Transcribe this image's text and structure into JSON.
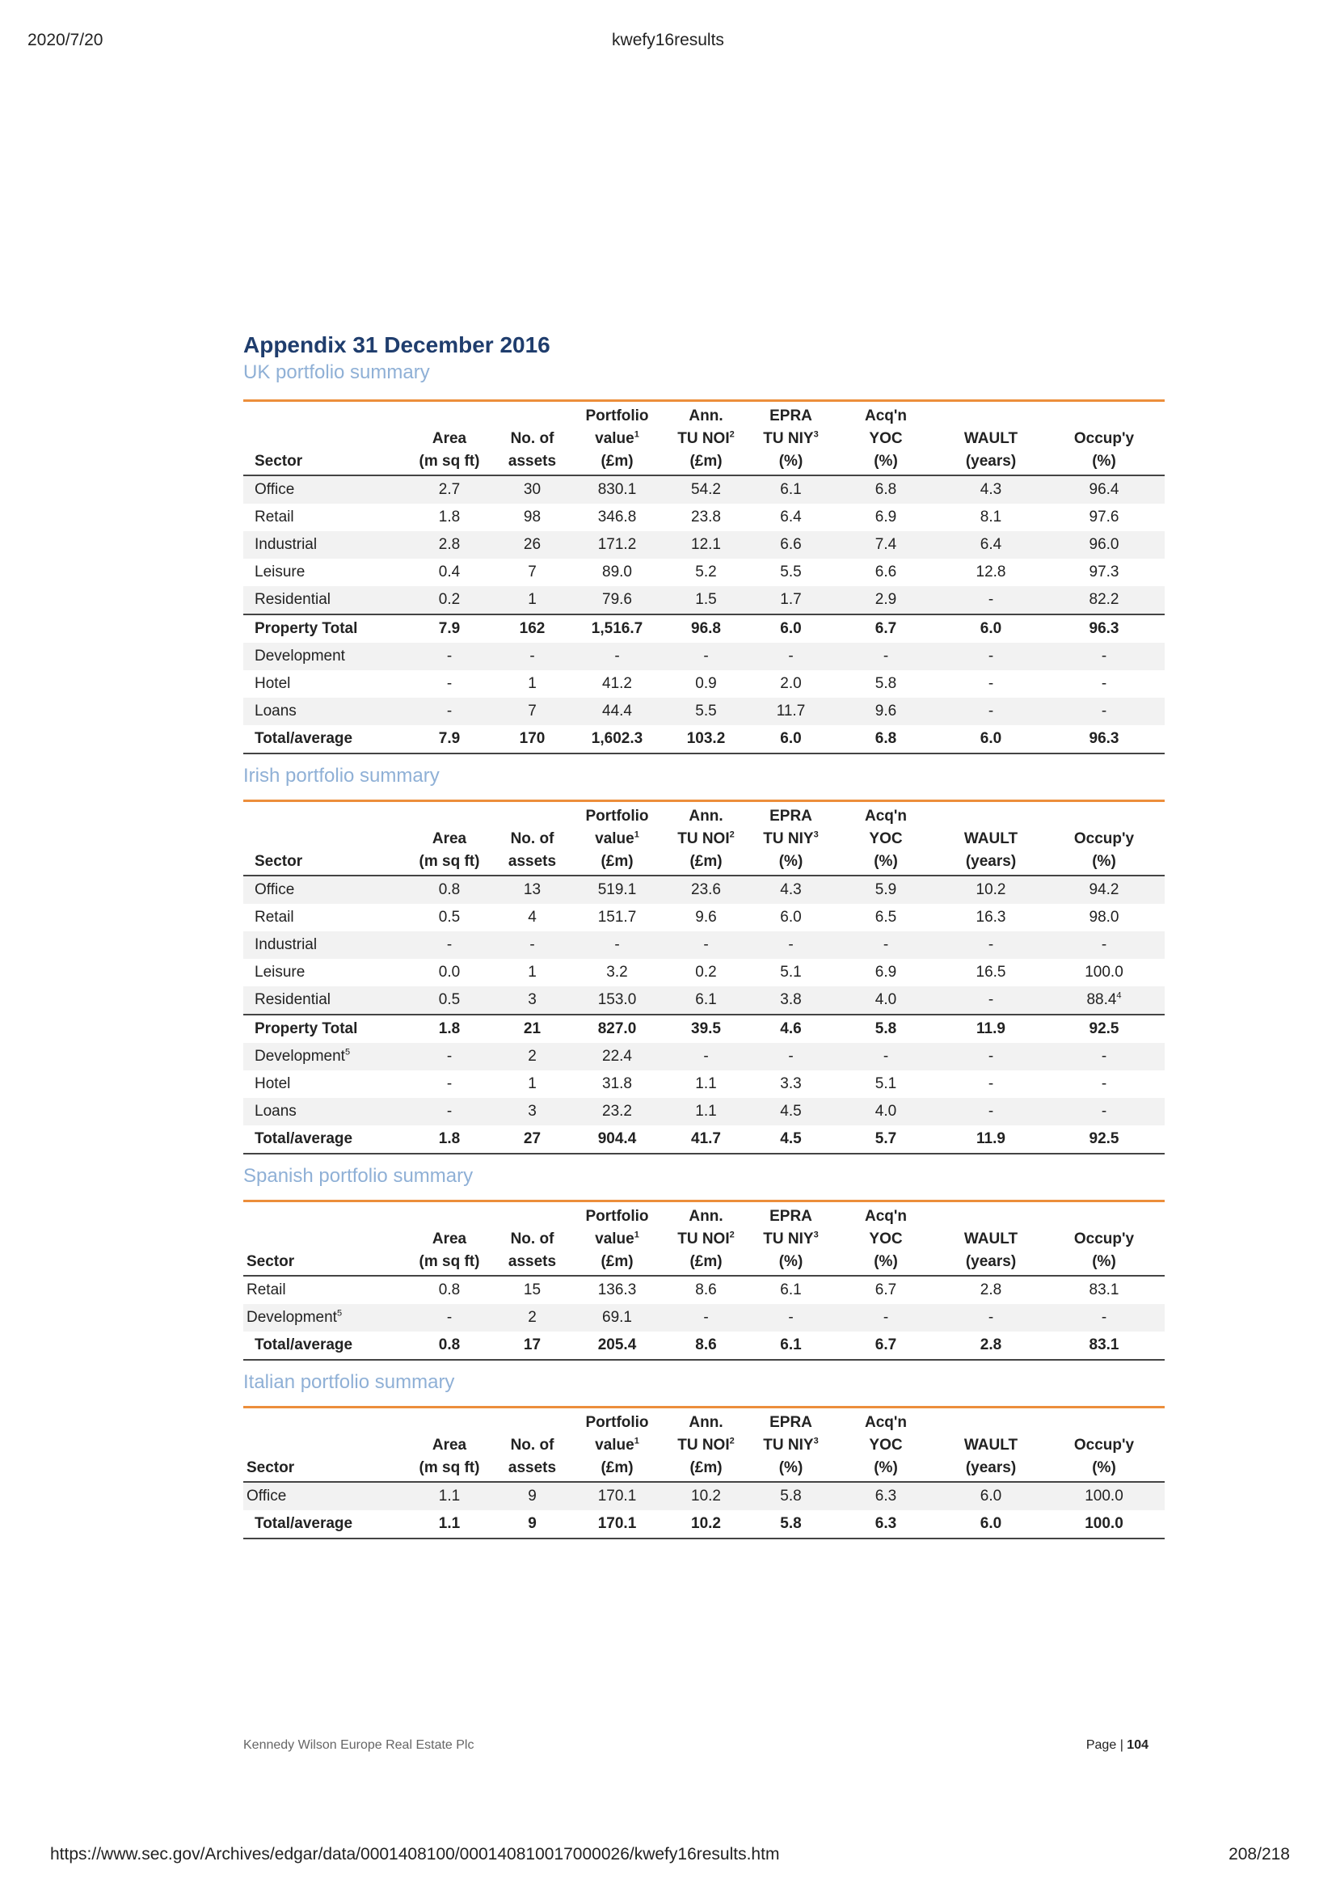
{
  "browser": {
    "date": "2020/7/20",
    "title": "kwefy16results",
    "url": "https://www.sec.gov/Archives/edgar/data/0001408100/000140810017000026/kwefy16results.htm",
    "page_count": "208/218"
  },
  "document": {
    "title": "Appendix 31 December 2016",
    "footer_company": "Kennedy Wilson Europe Real Estate Plc",
    "footer_page_label": "Page",
    "footer_page_sep": "|",
    "footer_page_number": "104"
  },
  "columns": {
    "sector": "Sector",
    "area_1": "Area",
    "area_2": "(m sq ft)",
    "assets_1": "No. of",
    "assets_2": "assets",
    "value_1": "Portfolio",
    "value_2": "value",
    "value_sup": "1",
    "value_3": "(£m)",
    "noi_1": "Ann.",
    "noi_2": "TU NOI",
    "noi_sup": "2",
    "noi_3": "(£m)",
    "niy_1": "EPRA",
    "niy_2": "TU NIY",
    "niy_sup": "3",
    "niy_3": "(%)",
    "yoc_1": "Acq'n",
    "yoc_2": "YOC",
    "yoc_3": "(%)",
    "wault_1": "WAULT",
    "wault_2": "(years)",
    "occ_1": "Occup'y",
    "occ_2": "(%)"
  },
  "uk": {
    "title": "UK portfolio summary",
    "rows": [
      {
        "sector": "Office",
        "area": "2.7",
        "assets": "30",
        "value": "830.1",
        "noi": "54.2",
        "niy": "6.1",
        "yoc": "6.8",
        "wault": "4.3",
        "occ": "96.4"
      },
      {
        "sector": "Retail",
        "area": "1.8",
        "assets": "98",
        "value": "346.8",
        "noi": "23.8",
        "niy": "6.4",
        "yoc": "6.9",
        "wault": "8.1",
        "occ": "97.6"
      },
      {
        "sector": "Industrial",
        "area": "2.8",
        "assets": "26",
        "value": "171.2",
        "noi": "12.1",
        "niy": "6.6",
        "yoc": "7.4",
        "wault": "6.4",
        "occ": "96.0"
      },
      {
        "sector": "Leisure",
        "area": "0.4",
        "assets": "7",
        "value": "89.0",
        "noi": "5.2",
        "niy": "5.5",
        "yoc": "6.6",
        "wault": "12.8",
        "occ": "97.3"
      },
      {
        "sector": "Residential",
        "area": "0.2",
        "assets": "1",
        "value": "79.6",
        "noi": "1.5",
        "niy": "1.7",
        "yoc": "2.9",
        "wault": "-",
        "occ": "82.2"
      },
      {
        "sector": "Property Total",
        "area": "7.9",
        "assets": "162",
        "value": "1,516.7",
        "noi": "96.8",
        "niy": "6.0",
        "yoc": "6.7",
        "wault": "6.0",
        "occ": "96.3"
      },
      {
        "sector": "Development",
        "area": "-",
        "assets": "-",
        "value": "-",
        "noi": "-",
        "niy": "-",
        "yoc": "-",
        "wault": "-",
        "occ": "-"
      },
      {
        "sector": "Hotel",
        "area": "-",
        "assets": "1",
        "value": "41.2",
        "noi": "0.9",
        "niy": "2.0",
        "yoc": "5.8",
        "wault": "-",
        "occ": "-"
      },
      {
        "sector": "Loans",
        "area": "-",
        "assets": "7",
        "value": "44.4",
        "noi": "5.5",
        "niy": "11.7",
        "yoc": "9.6",
        "wault": "-",
        "occ": "-"
      },
      {
        "sector": "Total/average",
        "area": "7.9",
        "assets": "170",
        "value": "1,602.3",
        "noi": "103.2",
        "niy": "6.0",
        "yoc": "6.8",
        "wault": "6.0",
        "occ": "96.3"
      }
    ]
  },
  "ie": {
    "title": "Irish portfolio summary",
    "rows": [
      {
        "sector": "Office",
        "area": "0.8",
        "assets": "13",
        "value": "519.1",
        "noi": "23.6",
        "niy": "4.3",
        "yoc": "5.9",
        "wault": "10.2",
        "occ": "94.2"
      },
      {
        "sector": "Retail",
        "area": "0.5",
        "assets": "4",
        "value": "151.7",
        "noi": "9.6",
        "niy": "6.0",
        "yoc": "6.5",
        "wault": "16.3",
        "occ": "98.0"
      },
      {
        "sector": "Industrial",
        "area": "-",
        "assets": "-",
        "value": "-",
        "noi": "-",
        "niy": "-",
        "yoc": "-",
        "wault": "-",
        "occ": "-"
      },
      {
        "sector": "Leisure",
        "area": "0.0",
        "assets": "1",
        "value": "3.2",
        "noi": "0.2",
        "niy": "5.1",
        "yoc": "6.9",
        "wault": "16.5",
        "occ": "100.0"
      },
      {
        "sector": "Residential",
        "area": "0.5",
        "assets": "3",
        "value": "153.0",
        "noi": "6.1",
        "niy": "3.8",
        "yoc": "4.0",
        "wault": "-",
        "occ": "88.4",
        "occ_sup": "4"
      },
      {
        "sector": "Property Total",
        "area": "1.8",
        "assets": "21",
        "value": "827.0",
        "noi": "39.5",
        "niy": "4.6",
        "yoc": "5.8",
        "wault": "11.9",
        "occ": "92.5"
      },
      {
        "sector": "Development",
        "sector_sup": "5",
        "area": "-",
        "assets": "2",
        "value": "22.4",
        "noi": "-",
        "niy": "-",
        "yoc": "-",
        "wault": "-",
        "occ": "-"
      },
      {
        "sector": "Hotel",
        "area": "-",
        "assets": "1",
        "value": "31.8",
        "noi": "1.1",
        "niy": "3.3",
        "yoc": "5.1",
        "wault": "-",
        "occ": "-"
      },
      {
        "sector": "Loans",
        "area": "-",
        "assets": "3",
        "value": "23.2",
        "noi": "1.1",
        "niy": "4.5",
        "yoc": "4.0",
        "wault": "-",
        "occ": "-"
      },
      {
        "sector": "Total/average",
        "area": "1.8",
        "assets": "27",
        "value": "904.4",
        "noi": "41.7",
        "niy": "4.5",
        "yoc": "5.7",
        "wault": "11.9",
        "occ": "92.5"
      }
    ]
  },
  "es": {
    "title": "Spanish portfolio summary",
    "rows": [
      {
        "sector": "Retail",
        "area": "0.8",
        "assets": "15",
        "value": "136.3",
        "noi": "8.6",
        "niy": "6.1",
        "yoc": "6.7",
        "wault": "2.8",
        "occ": "83.1"
      },
      {
        "sector": "Development",
        "sector_sup": "5",
        "area": "-",
        "assets": "2",
        "value": "69.1",
        "noi": "-",
        "niy": "-",
        "yoc": "-",
        "wault": "-",
        "occ": "-"
      },
      {
        "sector": "Total/average",
        "area": "0.8",
        "assets": "17",
        "value": "205.4",
        "noi": "8.6",
        "niy": "6.1",
        "yoc": "6.7",
        "wault": "2.8",
        "occ": "83.1"
      }
    ]
  },
  "it": {
    "title": "Italian portfolio summary",
    "rows": [
      {
        "sector": "Office",
        "area": "1.1",
        "assets": "9",
        "value": "170.1",
        "noi": "10.2",
        "niy": "5.8",
        "yoc": "6.3",
        "wault": "6.0",
        "occ": "100.0"
      },
      {
        "sector": "Total/average",
        "area": "1.1",
        "assets": "9",
        "value": "170.1",
        "noi": "10.2",
        "niy": "5.8",
        "yoc": "6.3",
        "wault": "6.0",
        "occ": "100.0"
      }
    ]
  }
}
